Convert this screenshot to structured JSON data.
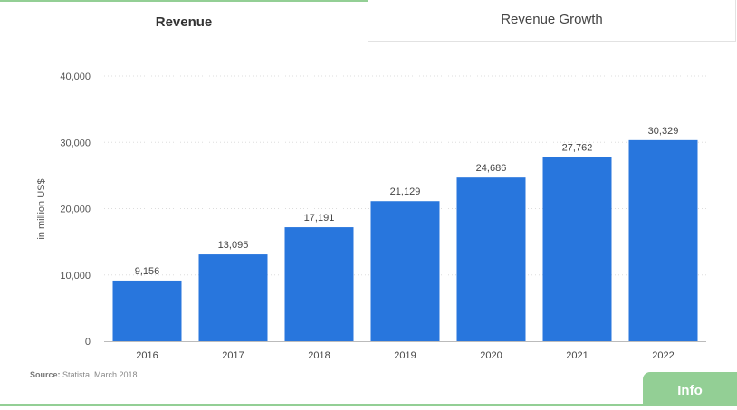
{
  "tabs": {
    "active": "Revenue",
    "other": "Revenue Growth"
  },
  "source": {
    "label": "Source:",
    "text": " Statista, March 2018"
  },
  "info_button": "Info",
  "colors": {
    "bar": "#2876dd",
    "accent": "#93cf95"
  },
  "chart_data": {
    "type": "bar",
    "categories": [
      "2016",
      "2017",
      "2018",
      "2019",
      "2020",
      "2021",
      "2022"
    ],
    "values": [
      9156,
      13095,
      17191,
      21129,
      24686,
      27762,
      30329
    ],
    "value_labels": [
      "9,156",
      "13,095",
      "17,191",
      "21,129",
      "24,686",
      "27,762",
      "30,329"
    ],
    "ylabel": "in million US$",
    "xlabel": "",
    "ylim": [
      0,
      40000
    ],
    "yticks": [
      0,
      10000,
      20000,
      30000,
      40000
    ],
    "ytick_labels": [
      "0",
      "10,000",
      "20,000",
      "30,000",
      "40,000"
    ],
    "grid": true
  }
}
